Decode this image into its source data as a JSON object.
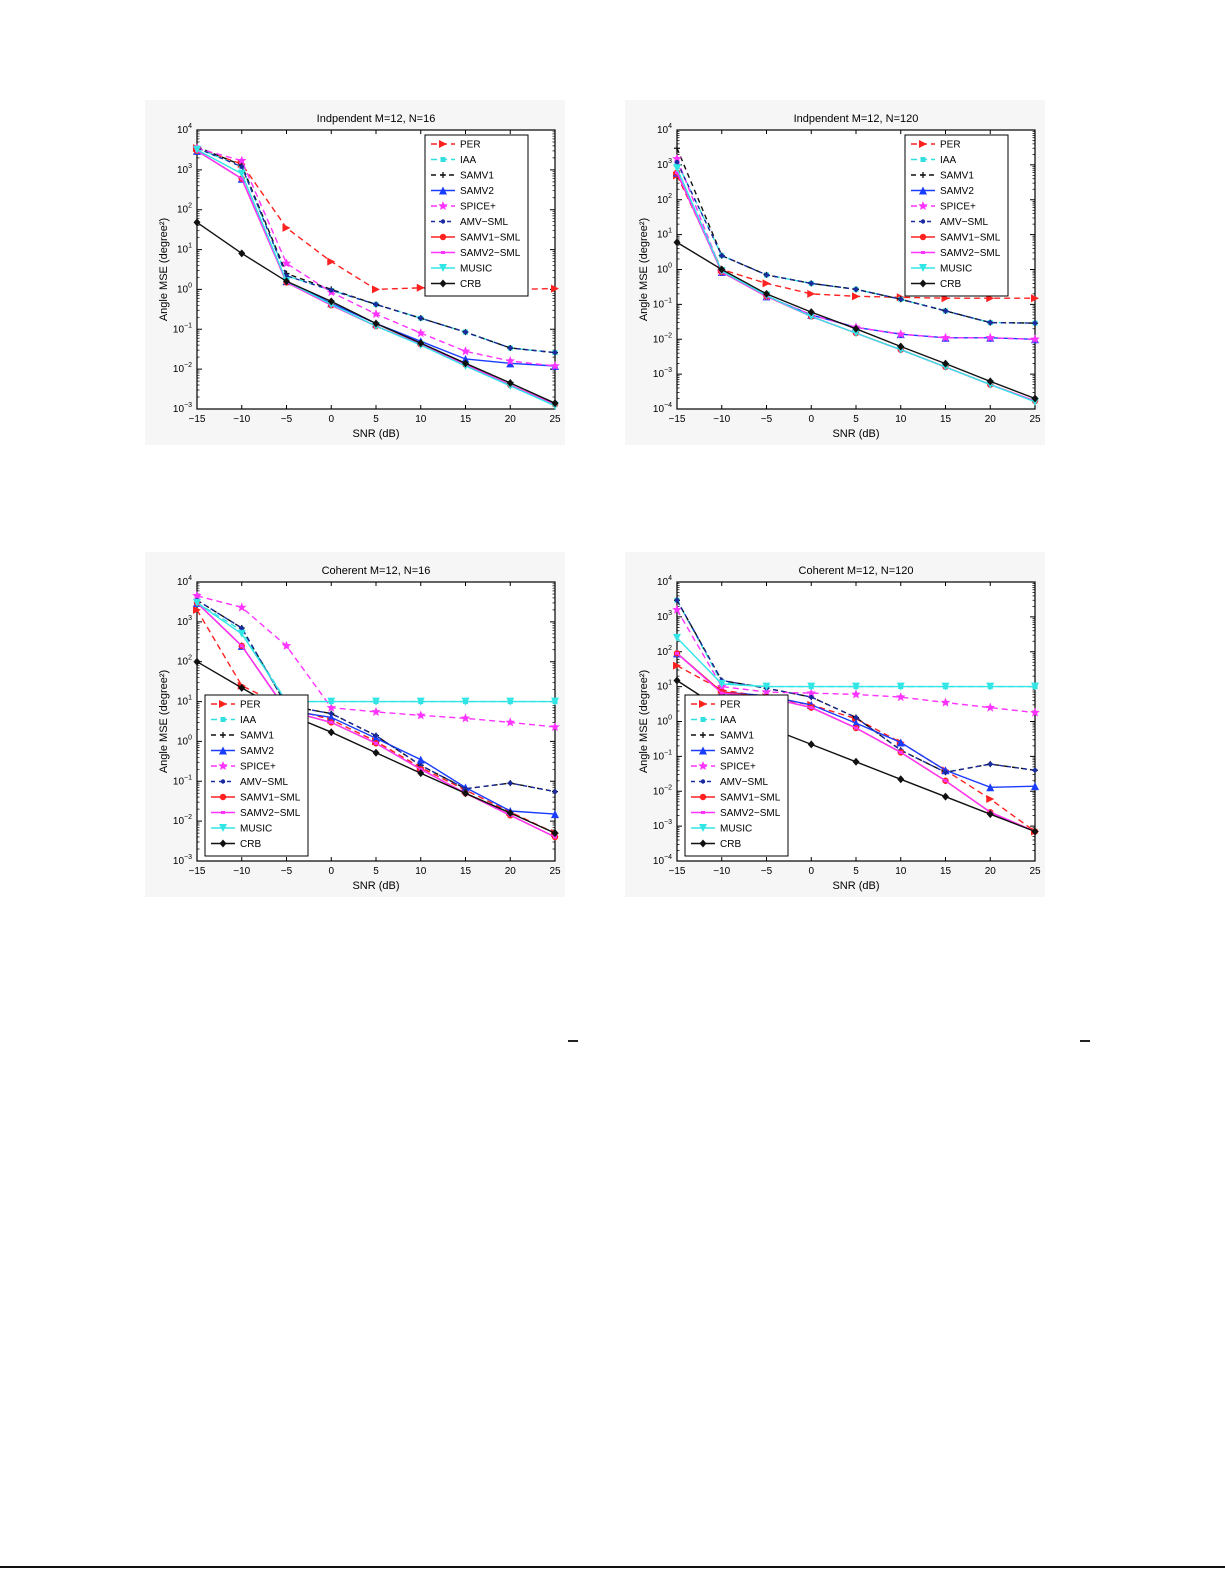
{
  "charts": {
    "chart_data": [
      {
        "type": "line",
        "title": "Indpendent M=12, N=16",
        "xlabel": "SNR (dB)",
        "ylabel": "Angle MSE (degree²)",
        "yscale": "log",
        "x": [
          -15,
          -10,
          -5,
          0,
          5,
          10,
          15,
          20,
          25
        ],
        "xlim": [
          -15,
          25
        ],
        "ylim": [
          0.001,
          10000
        ],
        "legend_position": "top-right",
        "series": [
          {
            "name": "PER",
            "values": [
              3500,
              1400,
              35,
              5,
              1.0,
              1.1,
              1.0,
              1.0,
              1.05
            ]
          },
          {
            "name": "IAA",
            "values": [
              3500,
              1200,
              2.2,
              0.95,
              0.42,
              0.19,
              0.085,
              0.034,
              0.026
            ]
          },
          {
            "name": "SAMV1",
            "values": [
              3800,
              1300,
              2.5,
              1.0,
              0.42,
              0.19,
              0.085,
              0.034,
              0.026
            ]
          },
          {
            "name": "SAMV2",
            "values": [
              3000,
              600,
              1.6,
              0.45,
              0.14,
              0.05,
              0.018,
              0.014,
              0.012
            ]
          },
          {
            "name": "SPICE+",
            "values": [
              3500,
              1700,
              4.5,
              0.85,
              0.24,
              0.08,
              0.028,
              0.016,
              0.012
            ]
          },
          {
            "name": "AMV−SML",
            "values": [
              3500,
              1200,
              2.2,
              0.95,
              0.42,
              0.19,
              0.085,
              0.034,
              0.026
            ]
          },
          {
            "name": "SAMV1−SML",
            "values": [
              3000,
              600,
              1.5,
              0.4,
              0.12,
              0.042,
              0.013,
              0.004,
              0.0013
            ]
          },
          {
            "name": "SAMV2−SML",
            "values": [
              3000,
              600,
              1.5,
              0.4,
              0.12,
              0.042,
              0.013,
              0.004,
              0.0013
            ]
          },
          {
            "name": "MUSIC",
            "values": [
              3200,
              800,
              1.6,
              0.42,
              0.12,
              0.04,
              0.012,
              0.0038,
              0.0012
            ]
          },
          {
            "name": "CRB",
            "values": [
              48,
              8,
              1.6,
              0.5,
              0.14,
              0.045,
              0.014,
              0.0045,
              0.0014
            ]
          }
        ]
      },
      {
        "type": "line",
        "title": "Indpendent M=12, N=120",
        "xlabel": "SNR (dB)",
        "ylabel": "Angle MSE (degree²)",
        "yscale": "log",
        "x": [
          -15,
          -10,
          -5,
          0,
          5,
          10,
          15,
          20,
          25
        ],
        "xlim": [
          -15,
          25
        ],
        "ylim": [
          0.0001,
          10000
        ],
        "legend_position": "top-right",
        "series": [
          {
            "name": "PER",
            "values": [
              500,
              1.0,
              0.4,
              0.2,
              0.17,
              0.16,
              0.15,
              0.15,
              0.15
            ]
          },
          {
            "name": "IAA",
            "values": [
              1200,
              2.5,
              0.7,
              0.4,
              0.27,
              0.14,
              0.065,
              0.03,
              0.029
            ]
          },
          {
            "name": "SAMV1",
            "values": [
              3000,
              2.5,
              0.7,
              0.4,
              0.27,
              0.14,
              0.065,
              0.03,
              0.029
            ]
          },
          {
            "name": "SAMV2",
            "values": [
              600,
              0.85,
              0.17,
              0.05,
              0.022,
              0.014,
              0.011,
              0.011,
              0.01
            ]
          },
          {
            "name": "SPICE+",
            "values": [
              1500,
              0.85,
              0.17,
              0.05,
              0.022,
              0.014,
              0.011,
              0.011,
              0.01
            ]
          },
          {
            "name": "AMV−SML",
            "values": [
              1200,
              2.5,
              0.7,
              0.4,
              0.27,
              0.14,
              0.065,
              0.03,
              0.029
            ]
          },
          {
            "name": "SAMV1−SML",
            "values": [
              600,
              0.85,
              0.17,
              0.045,
              0.015,
              0.005,
              0.0016,
              0.0005,
              0.00017
            ]
          },
          {
            "name": "SAMV2−SML",
            "values": [
              600,
              0.85,
              0.17,
              0.045,
              0.015,
              0.005,
              0.0016,
              0.0005,
              0.00017
            ]
          },
          {
            "name": "MUSIC",
            "values": [
              800,
              0.9,
              0.18,
              0.045,
              0.015,
              0.005,
              0.0016,
              0.0005,
              0.00016
            ]
          },
          {
            "name": "CRB",
            "values": [
              6,
              1.0,
              0.2,
              0.06,
              0.02,
              0.0062,
              0.002,
              0.00062,
              0.0002
            ]
          }
        ]
      },
      {
        "type": "line",
        "title": "Coherent M=12, N=16",
        "xlabel": "SNR (dB)",
        "ylabel": "Angle MSE (degree²)",
        "yscale": "log",
        "x": [
          -15,
          -10,
          -5,
          0,
          5,
          10,
          15,
          20,
          25
        ],
        "xlim": [
          -15,
          25
        ],
        "ylim": [
          0.001,
          10000
        ],
        "legend_position": "bottom-left",
        "series": [
          {
            "name": "PER",
            "values": [
              2000,
              25,
              7,
              3.5,
              1.0,
              0.22,
              0.06,
              0.017,
              0.005
            ]
          },
          {
            "name": "IAA",
            "values": [
              3000,
              600,
              10,
              10,
              10,
              10,
              10,
              10,
              10
            ]
          },
          {
            "name": "SAMV1",
            "values": [
              3500,
              700,
              8,
              5,
              1.4,
              0.25,
              0.065,
              0.09,
              0.055
            ]
          },
          {
            "name": "SAMV2",
            "values": [
              3000,
              250,
              6,
              4,
              1.2,
              0.35,
              0.07,
              0.018,
              0.015
            ]
          },
          {
            "name": "SPICE+",
            "values": [
              4500,
              2300,
              250,
              7,
              5.5,
              4.5,
              3.8,
              3.0,
              2.3
            ]
          },
          {
            "name": "AMV−SML",
            "values": [
              3500,
              700,
              8,
              5,
              1.4,
              0.25,
              0.065,
              0.09,
              0.055
            ]
          },
          {
            "name": "SAMV1−SML",
            "values": [
              3000,
              250,
              6,
              3,
              0.9,
              0.2,
              0.05,
              0.014,
              0.004
            ]
          },
          {
            "name": "SAMV2−SML",
            "values": [
              3000,
              250,
              6,
              3,
              0.9,
              0.2,
              0.05,
              0.014,
              0.004
            ]
          },
          {
            "name": "MUSIC",
            "values": [
              3000,
              500,
              10,
              10,
              10,
              10,
              10,
              10,
              10
            ]
          },
          {
            "name": "CRB",
            "values": [
              100,
              22,
              5,
              1.7,
              0.52,
              0.16,
              0.05,
              0.016,
              0.005
            ]
          }
        ]
      },
      {
        "type": "line",
        "title": "Coherent M=12, N=120",
        "xlabel": "SNR (dB)",
        "ylabel": "Angle MSE (degree²)",
        "yscale": "log",
        "x": [
          -15,
          -10,
          -5,
          0,
          5,
          10,
          15,
          20,
          25
        ],
        "xlim": [
          -15,
          25
        ],
        "ylim": [
          0.0001,
          10000
        ],
        "legend_position": "bottom-left",
        "series": [
          {
            "name": "PER",
            "values": [
              40,
              8,
              5,
              3,
              1.2,
              0.25,
              0.04,
              0.006,
              0.0007
            ]
          },
          {
            "name": "IAA",
            "values": [
              3000,
              13,
              10,
              10,
              10,
              10,
              10,
              10,
              10
            ]
          },
          {
            "name": "SAMV1",
            "values": [
              3000,
              15,
              9,
              5,
              1.3,
              0.15,
              0.035,
              0.06,
              0.04
            ]
          },
          {
            "name": "SAMV2",
            "values": [
              90,
              7,
              5.5,
              3,
              0.9,
              0.25,
              0.04,
              0.013,
              0.014
            ]
          },
          {
            "name": "SPICE+",
            "values": [
              1600,
              10,
              7,
              6.5,
              6,
              5,
              3.5,
              2.5,
              1.8
            ]
          },
          {
            "name": "AMV−SML",
            "values": [
              3000,
              15,
              9,
              5,
              1.3,
              0.15,
              0.035,
              0.06,
              0.04
            ]
          },
          {
            "name": "SAMV1−SML",
            "values": [
              90,
              7,
              5,
              2.5,
              0.65,
              0.13,
              0.02,
              0.0025,
              0.0007
            ]
          },
          {
            "name": "SAMV2−SML",
            "values": [
              90,
              6.5,
              5,
              2.5,
              0.65,
              0.13,
              0.02,
              0.0025,
              0.0007
            ]
          },
          {
            "name": "MUSIC",
            "values": [
              250,
              12,
              10,
              10,
              10,
              10,
              10,
              10,
              10
            ]
          },
          {
            "name": "CRB",
            "values": [
              15,
              2.2,
              0.7,
              0.22,
              0.07,
              0.022,
              0.007,
              0.0022,
              0.0007
            ]
          }
        ]
      }
    ]
  },
  "styles": {
    "PER": {
      "color": "#ff2020",
      "dash": "6,4",
      "marker": "triangle-right"
    },
    "IAA": {
      "color": "#30e0e0",
      "dash": "6,4",
      "marker": "square"
    },
    "SAMV1": {
      "color": "#111111",
      "dash": "5,4",
      "marker": "plus"
    },
    "SAMV2": {
      "color": "#1a3cff",
      "dash": "",
      "marker": "triangle-up"
    },
    "SPICE+": {
      "color": "#ff33ff",
      "dash": "6,4",
      "marker": "star"
    },
    "AMV−SML": {
      "color": "#1a2aa0",
      "dash": "4,4",
      "marker": "dot"
    },
    "SAMV1−SML": {
      "color": "#ff2020",
      "dash": "",
      "marker": "circle"
    },
    "SAMV2−SML": {
      "color": "#ff33ff",
      "dash": "",
      "marker": "x-small"
    },
    "MUSIC": {
      "color": "#33e6e6",
      "dash": "",
      "marker": "triangle-down"
    },
    "CRB": {
      "color": "#111111",
      "dash": "",
      "marker": "diamond"
    }
  }
}
